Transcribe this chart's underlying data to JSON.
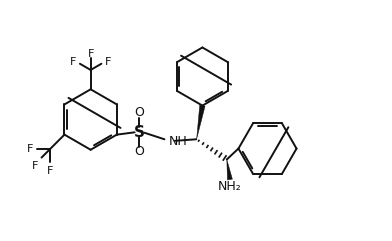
{
  "bg": "#ffffff",
  "lc": "#111111",
  "lw": 1.4,
  "fw": 3.92,
  "fh": 2.41,
  "dpi": 100,
  "xlim": [
    0,
    10
  ],
  "ylim": [
    0,
    6.15
  ]
}
